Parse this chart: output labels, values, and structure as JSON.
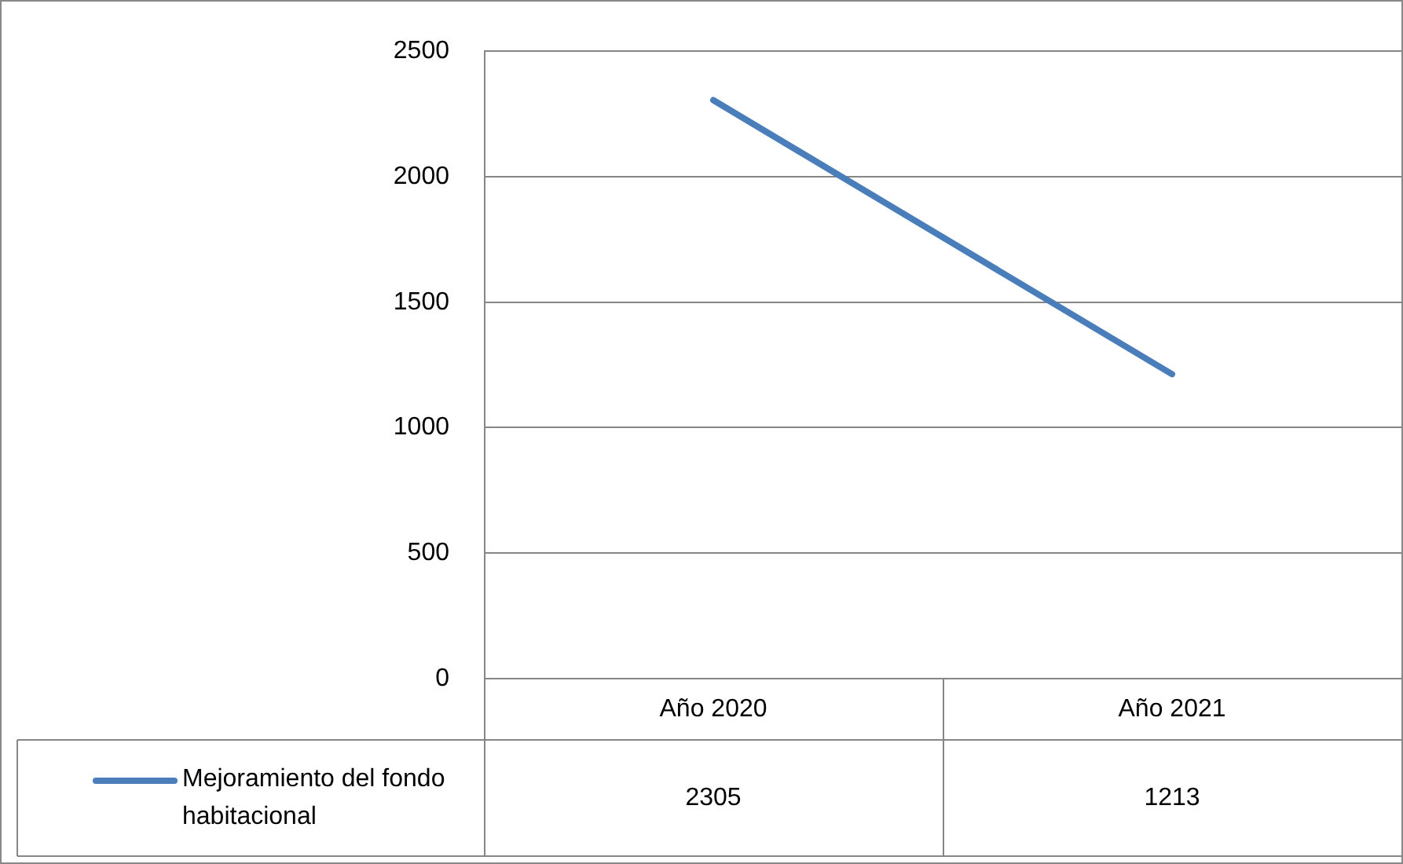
{
  "chart_data": {
    "type": "line",
    "categories": [
      "Año 2020",
      "Año 2021"
    ],
    "series": [
      {
        "name": "Mejoramiento del fondo habitacional",
        "color": "#4a7ebb",
        "values": [
          2305,
          1213
        ]
      }
    ],
    "ylim": [
      0,
      2500
    ],
    "yticks": [
      0,
      500,
      1000,
      1500,
      2000,
      2500
    ],
    "grid": "y",
    "data_labels": true,
    "marker": "none",
    "line_style": "solid"
  }
}
